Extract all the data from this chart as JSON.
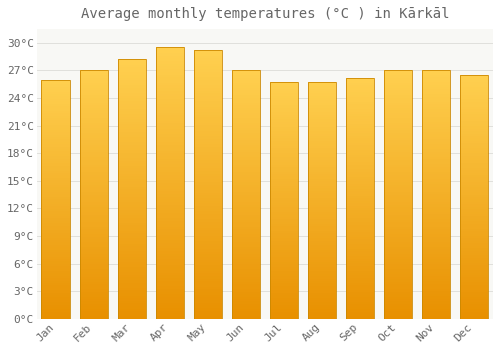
{
  "title": "Average monthly temperatures (°C ) in Kārkāl",
  "months": [
    "Jan",
    "Feb",
    "Mar",
    "Apr",
    "May",
    "Jun",
    "Jul",
    "Aug",
    "Sep",
    "Oct",
    "Nov",
    "Dec"
  ],
  "temperatures": [
    26.0,
    27.0,
    28.2,
    29.5,
    29.2,
    27.0,
    25.8,
    25.8,
    26.2,
    27.0,
    27.1,
    26.5
  ],
  "bar_color_top": "#FFD050",
  "bar_color_bottom": "#E89000",
  "bar_edge_color": "#CC8800",
  "background_color": "#FFFFFF",
  "plot_bg_color": "#F8F8F5",
  "grid_color": "#E0E0DC",
  "ytick_labels": [
    "0°C",
    "3°C",
    "6°C",
    "9°C",
    "12°C",
    "15°C",
    "18°C",
    "21°C",
    "24°C",
    "27°C",
    "30°C"
  ],
  "ytick_values": [
    0,
    3,
    6,
    9,
    12,
    15,
    18,
    21,
    24,
    27,
    30
  ],
  "ylim": [
    0,
    31.5
  ],
  "title_fontsize": 10,
  "tick_fontsize": 8,
  "font_color": "#666666"
}
